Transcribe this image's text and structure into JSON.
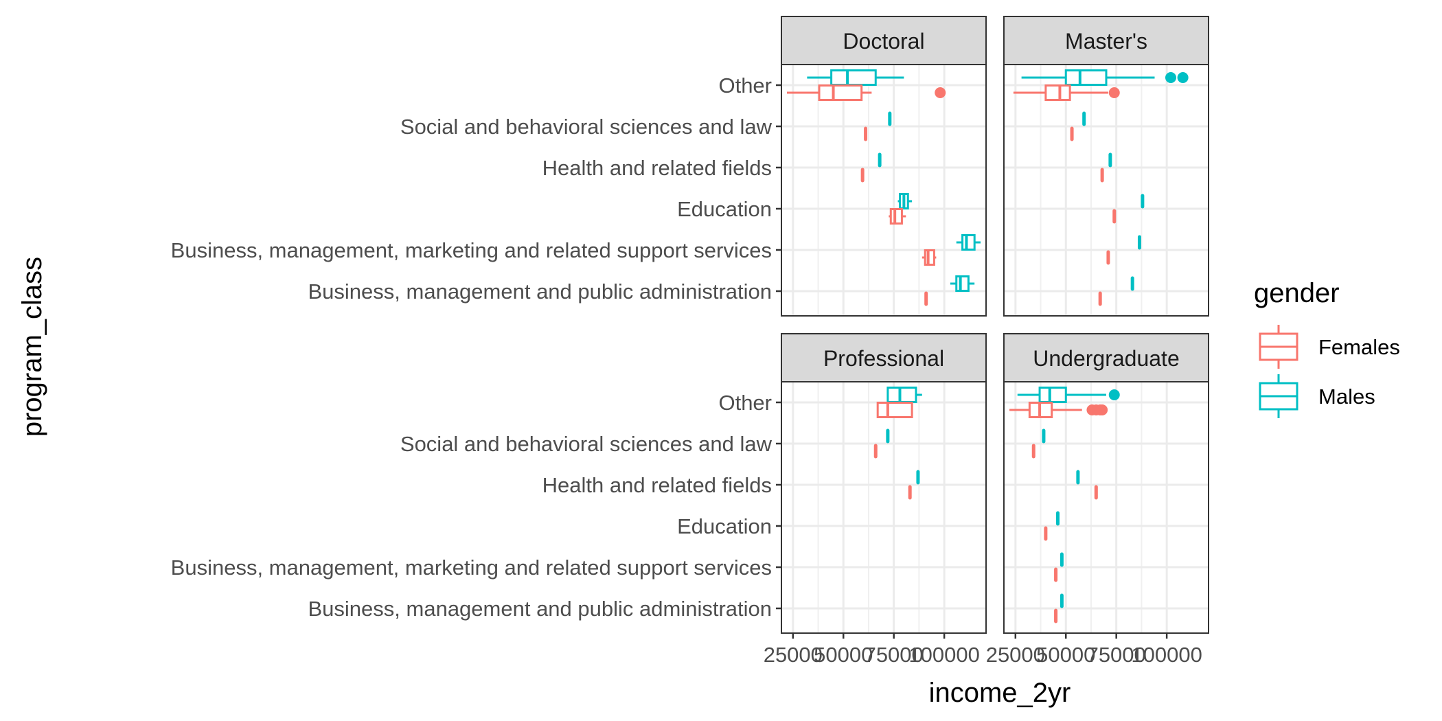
{
  "chart_data": {
    "type": "boxplot",
    "xlabel": "income_2yr",
    "ylabel": "program_class",
    "xlim": [
      22000,
      118000
    ],
    "x_ticks": [
      25000,
      50000,
      75000,
      100000
    ],
    "x_tick_labels": [
      "25000",
      "50000",
      "75000",
      "100000"
    ],
    "categories": [
      "Other",
      "Social and behavioral sciences and law",
      "Health and related fields",
      "Education",
      "Business, management, marketing and related support services",
      "Business, management and public administration"
    ],
    "legend": {
      "title": "gender",
      "placement": "right",
      "items": [
        {
          "name": "Females",
          "color": "#F8766D"
        },
        {
          "name": "Males",
          "color": "#00BFC4"
        }
      ]
    },
    "facets": [
      {
        "name": "Doctoral",
        "boxes": [
          {
            "category": "Other",
            "group": "Males",
            "whisker_low": 32000,
            "q1": 44000,
            "median": 52000,
            "q3": 66000,
            "whisker_high": 80000,
            "outliers": []
          },
          {
            "category": "Other",
            "group": "Females",
            "whisker_low": 22000,
            "q1": 38000,
            "median": 45000,
            "q3": 59000,
            "whisker_high": 64000,
            "outliers": [
              98000
            ]
          },
          {
            "category": "Social and behavioral sciences and law",
            "group": "Males",
            "whisker_low": 73000,
            "q1": 73000,
            "median": 73000,
            "q3": 73000,
            "whisker_high": 73000,
            "outliers": []
          },
          {
            "category": "Social and behavioral sciences and law",
            "group": "Females",
            "whisker_low": 61000,
            "q1": 61000,
            "median": 61000,
            "q3": 61000,
            "whisker_high": 61000,
            "outliers": []
          },
          {
            "category": "Health and related fields",
            "group": "Males",
            "whisker_low": 68000,
            "q1": 68000,
            "median": 68000,
            "q3": 68000,
            "whisker_high": 68000,
            "outliers": []
          },
          {
            "category": "Health and related fields",
            "group": "Females",
            "whisker_low": 59500,
            "q1": 59500,
            "median": 59500,
            "q3": 59500,
            "whisker_high": 59500,
            "outliers": []
          },
          {
            "category": "Education",
            "group": "Males",
            "whisker_low": 77000,
            "q1": 78000,
            "median": 80000,
            "q3": 82000,
            "whisker_high": 84000,
            "outliers": []
          },
          {
            "category": "Education",
            "group": "Females",
            "whisker_low": 72500,
            "q1": 73500,
            "median": 75500,
            "q3": 79000,
            "whisker_high": 81000,
            "outliers": []
          },
          {
            "category": "Business, management, marketing and related support services",
            "group": "Males",
            "whisker_low": 106000,
            "q1": 109000,
            "median": 111000,
            "q3": 115000,
            "whisker_high": 118000,
            "outliers": []
          },
          {
            "category": "Business, management, marketing and related support services",
            "group": "Females",
            "whisker_low": 89000,
            "q1": 90500,
            "median": 92000,
            "q3": 95000,
            "whisker_high": 96000,
            "outliers": []
          },
          {
            "category": "Business, management and public administration",
            "group": "Males",
            "whisker_low": 103000,
            "q1": 106000,
            "median": 108000,
            "q3": 112000,
            "whisker_high": 115000,
            "outliers": []
          },
          {
            "category": "Business, management and public administration",
            "group": "Females",
            "whisker_low": 91000,
            "q1": 91000,
            "median": 91000,
            "q3": 91000,
            "whisker_high": 91000,
            "outliers": []
          }
        ]
      },
      {
        "name": "Master's",
        "boxes": [
          {
            "category": "Other",
            "group": "Males",
            "whisker_low": 28000,
            "q1": 50000,
            "median": 57000,
            "q3": 70000,
            "whisker_high": 94000,
            "outliers": [
              102000,
              108000
            ]
          },
          {
            "category": "Other",
            "group": "Females",
            "whisker_low": 24000,
            "q1": 40000,
            "median": 47000,
            "q3": 52000,
            "whisker_high": 71000,
            "outliers": [
              74000
            ]
          },
          {
            "category": "Social and behavioral sciences and law",
            "group": "Males",
            "whisker_low": 59000,
            "q1": 59000,
            "median": 59000,
            "q3": 59000,
            "whisker_high": 59000,
            "outliers": []
          },
          {
            "category": "Social and behavioral sciences and law",
            "group": "Females",
            "whisker_low": 53000,
            "q1": 53000,
            "median": 53000,
            "q3": 53000,
            "whisker_high": 53000,
            "outliers": []
          },
          {
            "category": "Health and related fields",
            "group": "Males",
            "whisker_low": 72000,
            "q1": 72000,
            "median": 72000,
            "q3": 72000,
            "whisker_high": 72000,
            "outliers": []
          },
          {
            "category": "Health and related fields",
            "group": "Females",
            "whisker_low": 68000,
            "q1": 68000,
            "median": 68000,
            "q3": 68000,
            "whisker_high": 68000,
            "outliers": []
          },
          {
            "category": "Education",
            "group": "Males",
            "whisker_low": 88000,
            "q1": 88000,
            "median": 88000,
            "q3": 88000,
            "whisker_high": 88000,
            "outliers": []
          },
          {
            "category": "Education",
            "group": "Females",
            "whisker_low": 74000,
            "q1": 74000,
            "median": 74000,
            "q3": 74000,
            "whisker_high": 74000,
            "outliers": []
          },
          {
            "category": "Business, management, marketing and related support services",
            "group": "Males",
            "whisker_low": 86500,
            "q1": 86500,
            "median": 86500,
            "q3": 86500,
            "whisker_high": 86500,
            "outliers": []
          },
          {
            "category": "Business, management, marketing and related support services",
            "group": "Females",
            "whisker_low": 71000,
            "q1": 71000,
            "median": 71000,
            "q3": 71000,
            "whisker_high": 71000,
            "outliers": []
          },
          {
            "category": "Business, management and public administration",
            "group": "Males",
            "whisker_low": 83000,
            "q1": 83000,
            "median": 83000,
            "q3": 83000,
            "whisker_high": 83000,
            "outliers": []
          },
          {
            "category": "Business, management and public administration",
            "group": "Females",
            "whisker_low": 67000,
            "q1": 67000,
            "median": 67000,
            "q3": 67000,
            "whisker_high": 67000,
            "outliers": []
          }
        ]
      },
      {
        "name": "Professional",
        "boxes": [
          {
            "category": "Other",
            "group": "Males",
            "whisker_low": 72000,
            "q1": 72000,
            "median": 78000,
            "q3": 86000,
            "whisker_high": 89000,
            "outliers": []
          },
          {
            "category": "Other",
            "group": "Females",
            "whisker_low": 67000,
            "q1": 67000,
            "median": 72000,
            "q3": 84000,
            "whisker_high": 84000,
            "outliers": []
          },
          {
            "category": "Social and behavioral sciences and law",
            "group": "Males",
            "whisker_low": 72000,
            "q1": 72000,
            "median": 72000,
            "q3": 72000,
            "whisker_high": 72000,
            "outliers": []
          },
          {
            "category": "Social and behavioral sciences and law",
            "group": "Females",
            "whisker_low": 66000,
            "q1": 66000,
            "median": 66000,
            "q3": 66000,
            "whisker_high": 66000,
            "outliers": []
          },
          {
            "category": "Health and related fields",
            "group": "Males",
            "whisker_low": 87000,
            "q1": 87000,
            "median": 87000,
            "q3": 87000,
            "whisker_high": 87000,
            "outliers": []
          },
          {
            "category": "Health and related fields",
            "group": "Females",
            "whisker_low": 83000,
            "q1": 83000,
            "median": 83000,
            "q3": 83000,
            "whisker_high": 83000,
            "outliers": []
          }
        ]
      },
      {
        "name": "Undergraduate",
        "boxes": [
          {
            "category": "Other",
            "group": "Males",
            "whisker_low": 26000,
            "q1": 37000,
            "median": 42000,
            "q3": 50000,
            "whisker_high": 70000,
            "outliers": [
              74000
            ]
          },
          {
            "category": "Other",
            "group": "Females",
            "whisker_low": 22000,
            "q1": 32000,
            "median": 37000,
            "q3": 43000,
            "whisker_high": 58000,
            "outliers": [
              63000,
              65000,
              67000,
              68000
            ]
          },
          {
            "category": "Social and behavioral sciences and law",
            "group": "Males",
            "whisker_low": 39000,
            "q1": 39000,
            "median": 39000,
            "q3": 39000,
            "whisker_high": 39000,
            "outliers": []
          },
          {
            "category": "Social and behavioral sciences and law",
            "group": "Females",
            "whisker_low": 34000,
            "q1": 34000,
            "median": 34000,
            "q3": 34000,
            "whisker_high": 34000,
            "outliers": []
          },
          {
            "category": "Health and related fields",
            "group": "Males",
            "whisker_low": 56000,
            "q1": 56000,
            "median": 56000,
            "q3": 56000,
            "whisker_high": 56000,
            "outliers": []
          },
          {
            "category": "Health and related fields",
            "group": "Females",
            "whisker_low": 65000,
            "q1": 65000,
            "median": 65000,
            "q3": 65000,
            "whisker_high": 65000,
            "outliers": []
          },
          {
            "category": "Education",
            "group": "Males",
            "whisker_low": 46000,
            "q1": 46000,
            "median": 46000,
            "q3": 46000,
            "whisker_high": 46000,
            "outliers": []
          },
          {
            "category": "Education",
            "group": "Females",
            "whisker_low": 40000,
            "q1": 40000,
            "median": 40000,
            "q3": 40000,
            "whisker_high": 40000,
            "outliers": []
          },
          {
            "category": "Business, management, marketing and related support services",
            "group": "Males",
            "whisker_low": 48000,
            "q1": 48000,
            "median": 48000,
            "q3": 48000,
            "whisker_high": 48000,
            "outliers": []
          },
          {
            "category": "Business, management, marketing and related support services",
            "group": "Females",
            "whisker_low": 45000,
            "q1": 45000,
            "median": 45000,
            "q3": 45000,
            "whisker_high": 45000,
            "outliers": []
          },
          {
            "category": "Business, management and public administration",
            "group": "Males",
            "whisker_low": 48000,
            "q1": 48000,
            "median": 48000,
            "q3": 48000,
            "whisker_high": 48000,
            "outliers": []
          },
          {
            "category": "Business, management and public administration",
            "group": "Females",
            "whisker_low": 45000,
            "q1": 45000,
            "median": 45000,
            "q3": 45000,
            "whisker_high": 45000,
            "outliers": []
          }
        ]
      }
    ]
  }
}
